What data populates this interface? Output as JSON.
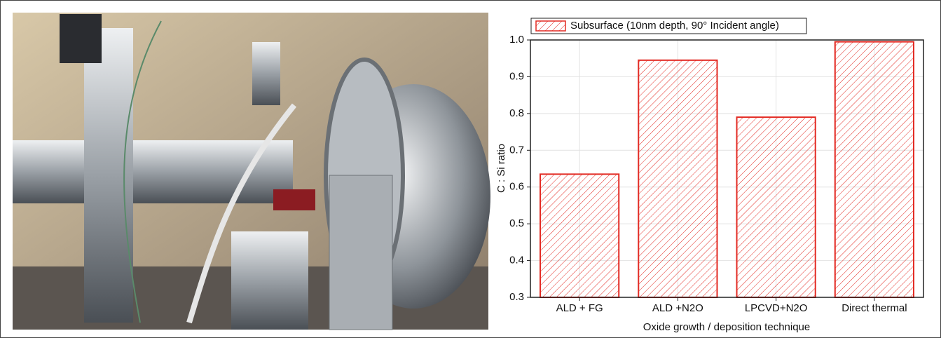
{
  "chart_data": {
    "type": "bar",
    "legend": "top-left",
    "series": [
      {
        "name": "Subsurface (10nm depth, 90° Incident angle)",
        "color": "#e32b24",
        "values": [
          0.635,
          0.945,
          0.79,
          0.995
        ]
      }
    ],
    "categories": [
      "ALD + FG",
      "ALD +N2O",
      "LPCVD+N2O",
      "Direct thermal"
    ],
    "xlabel": "Oxide growth / deposition technique",
    "ylabel": "C : Si ratio",
    "ylim": [
      0.3,
      1.0
    ],
    "yticks": [
      0.3,
      0.4,
      0.5,
      0.6,
      0.7,
      0.8,
      0.9,
      {
        "value": 1,
        "label": "1.0"
      }
    ],
    "grid": true
  }
}
